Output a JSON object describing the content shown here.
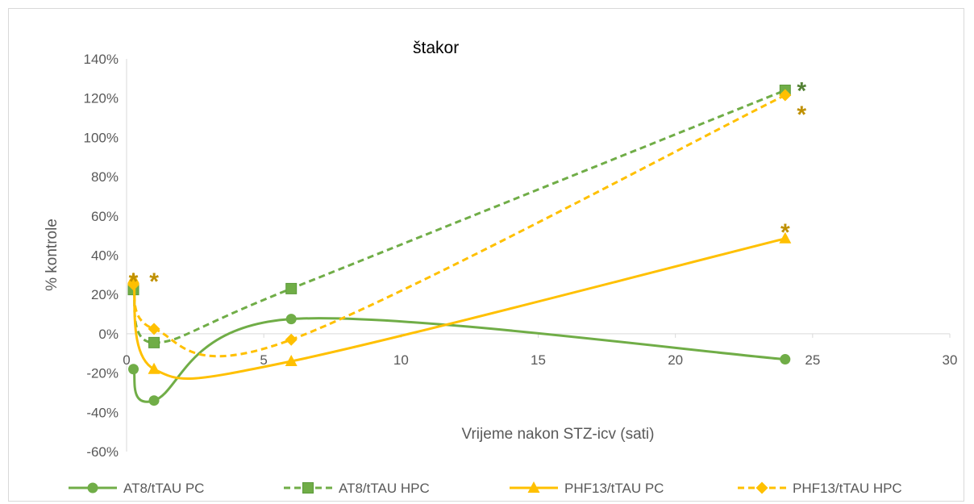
{
  "chart_data": {
    "type": "line",
    "title": "štakor",
    "xlabel": "Vrijeme nakon STZ-icv (sati)",
    "ylabel": "% kontrole",
    "xlim": [
      0,
      30
    ],
    "ylim": [
      -60,
      140
    ],
    "x_ticks": [
      0,
      5,
      10,
      15,
      20,
      25,
      30
    ],
    "y_ticks": [
      -60,
      -40,
      -20,
      0,
      20,
      40,
      60,
      80,
      100,
      120,
      140
    ],
    "y_tick_format": "percent",
    "grid": false,
    "legend_position": "bottom",
    "series": [
      {
        "name": "AT8/tTAU PC",
        "color": "#70ad47",
        "dash": false,
        "marker": "circle",
        "x": [
          0.25,
          1,
          6,
          24
        ],
        "values": [
          -18,
          -34,
          7.5,
          -13
        ]
      },
      {
        "name": "AT8/tTAU HPC",
        "color": "#70ad47",
        "dash": true,
        "marker": "square",
        "x": [
          0.25,
          1,
          6,
          24
        ],
        "values": [
          22.5,
          -4.5,
          23,
          124
        ]
      },
      {
        "name": "PHF13/tTAU PC",
        "color": "#ffc000",
        "dash": false,
        "marker": "triangle",
        "x": [
          0.25,
          1,
          6,
          24
        ],
        "values": [
          28,
          -18,
          -14,
          48.5
        ]
      },
      {
        "name": "PHF13/tTAU HPC",
        "color": "#ffc000",
        "dash": true,
        "marker": "diamond",
        "x": [
          0.25,
          1,
          6,
          24
        ],
        "values": [
          25,
          2.5,
          -3,
          121.5
        ]
      }
    ],
    "annotations": [
      {
        "text": "*",
        "x": 0.25,
        "y": 30,
        "color": "#bf9000"
      },
      {
        "text": "*",
        "x": 1,
        "y": 30,
        "color": "#bf9000"
      },
      {
        "text": "*",
        "x": 24,
        "y": 55,
        "color": "#bf9000"
      },
      {
        "text": "*",
        "x": 24.6,
        "y": 127,
        "color": "#548235"
      },
      {
        "text": "*",
        "x": 24.6,
        "y": 115,
        "color": "#bf9000"
      }
    ]
  }
}
